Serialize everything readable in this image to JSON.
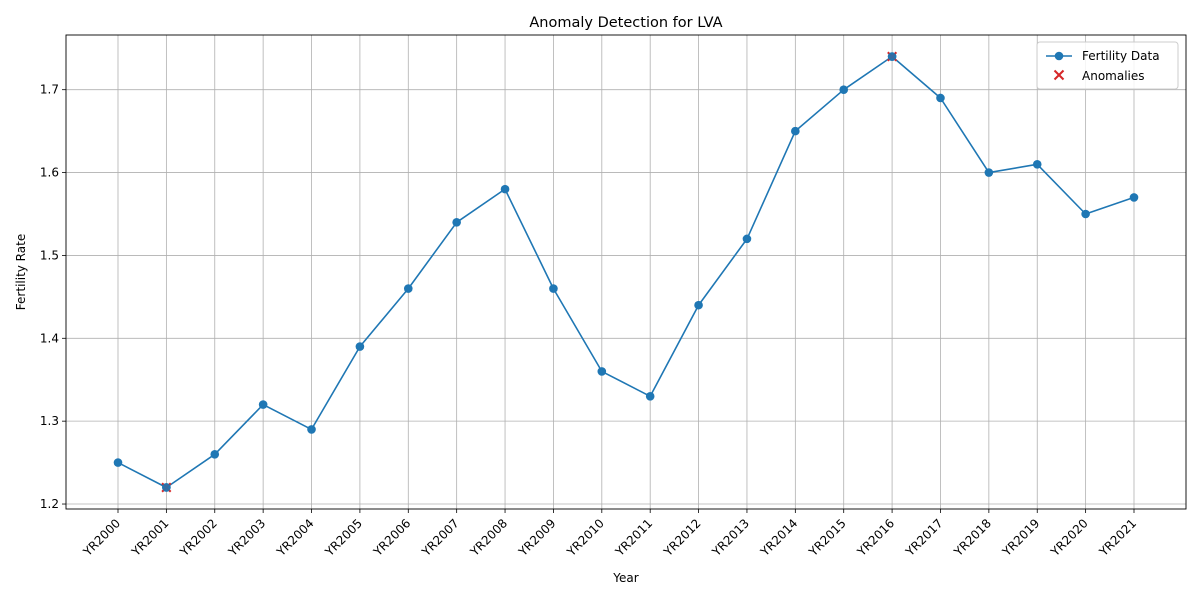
{
  "chart_data": {
    "type": "line",
    "title": "Anomaly Detection for LVA",
    "xlabel": "Year",
    "ylabel": "Fertility Rate",
    "categories": [
      "YR2000",
      "YR2001",
      "YR2002",
      "YR2003",
      "YR2004",
      "YR2005",
      "YR2006",
      "YR2007",
      "YR2008",
      "YR2009",
      "YR2010",
      "YR2011",
      "YR2012",
      "YR2013",
      "YR2014",
      "YR2015",
      "YR2016",
      "YR2017",
      "YR2018",
      "YR2019",
      "YR2020",
      "YR2021"
    ],
    "series": [
      {
        "name": "Fertility Data",
        "color": "#1f77b4",
        "marker": "circle",
        "values": [
          1.25,
          1.22,
          1.26,
          1.32,
          1.29,
          1.39,
          1.46,
          1.54,
          1.58,
          1.46,
          1.36,
          1.33,
          1.44,
          1.52,
          1.65,
          1.7,
          1.74,
          1.69,
          1.6,
          1.61,
          1.55,
          1.57
        ]
      },
      {
        "name": "Anomalies",
        "color": "#d62728",
        "marker": "x",
        "points": [
          {
            "x": "YR2001",
            "y": 1.22
          },
          {
            "x": "YR2016",
            "y": 1.74
          }
        ]
      }
    ],
    "yticks": [
      1.2,
      1.3,
      1.4,
      1.5,
      1.6,
      1.7
    ],
    "ylim": [
      1.194,
      1.766
    ],
    "grid": true,
    "legend_position": "upper right"
  }
}
